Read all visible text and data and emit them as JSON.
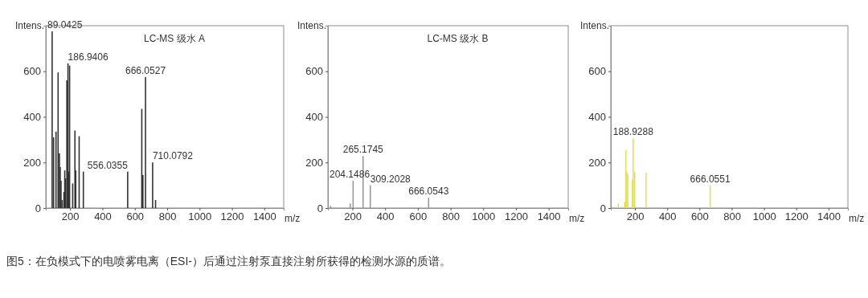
{
  "chart_data": [
    {
      "type": "bar",
      "title": "LC-MS 级水 A",
      "xlabel": "m/z",
      "ylabel": "Intens.",
      "xlim": [
        50,
        1520
      ],
      "ylim": [
        0,
        800
      ],
      "xticks": [
        200,
        400,
        600,
        800,
        1000,
        1200,
        1400
      ],
      "yticks": [
        0,
        200,
        400,
        600
      ],
      "grid": false,
      "series": [
        {
          "color": "#333333",
          "x": [
            89.0425,
            98,
            113,
            126,
            134,
            139,
            144,
            151,
            162,
            167,
            172,
            180,
            186.9406,
            192,
            197,
            216,
            230,
            235,
            256,
            282,
            556.0355,
            643,
            650,
            666.0527,
            710.0792,
            728
          ],
          "values": [
            775,
            310,
            335,
            595,
            240,
            180,
            120,
            35,
            70,
            165,
            130,
            560,
            635,
            160,
            625,
            108,
            340,
            165,
            315,
            160,
            160,
            435,
            145,
            575,
            200,
            35
          ]
        }
      ],
      "annotations": [
        {
          "text": "89.0425",
          "x": 89.0425,
          "y": 775
        },
        {
          "text": "186.9406",
          "x": 186.9406,
          "y": 635
        },
        {
          "text": "666.0527",
          "x": 666.0527,
          "y": 575
        },
        {
          "text": "556.0355",
          "x": 556.0355,
          "y": 160
        },
        {
          "text": "710.0792",
          "x": 710.0792,
          "y": 200
        },
        "图5：在负模式下的电喷雾电离（ESI-）后通过注射泵直接注射所获得的检测水源的质谱。"
      ]
    },
    {
      "type": "bar",
      "title": "LC-MS 级水 B",
      "xlabel": "m/z",
      "ylabel": "Intens.",
      "xlim": [
        50,
        1520
      ],
      "ylim": [
        0,
        800
      ],
      "xticks": [
        200,
        400,
        600,
        800,
        1000,
        1200,
        1400
      ],
      "yticks": [
        0,
        200,
        400,
        600
      ],
      "grid": false,
      "series": [
        {
          "color": "#999999",
          "x": [
            67,
            187,
            204.1486,
            265.1745,
            309.2028,
            666.0543
          ],
          "values": [
            10,
            20,
            120,
            228,
            100,
            45
          ]
        }
      ],
      "annotations": [
        {
          "text": "265.1745",
          "x": 265.1745,
          "y": 228
        },
        {
          "text": "204.1486",
          "x": 204.1486,
          "y": 120
        },
        {
          "text": "309.2028",
          "x": 309.2028,
          "y": 100
        },
        {
          "text": "666.0543",
          "x": 666.0543,
          "y": 45
        }
      ]
    },
    {
      "type": "bar",
      "xlabel": "m/z",
      "ylabel": "Intens.",
      "xlim": [
        50,
        1520
      ],
      "ylim": [
        0,
        800
      ],
      "xticks": [
        200,
        400,
        600,
        800,
        1000,
        1200,
        1400
      ],
      "yticks": [
        0,
        200,
        400,
        600
      ],
      "grid": false,
      "series": [
        {
          "color": "#e3df5c",
          "x": [
            96,
            136,
            143,
            149,
            155,
            183,
            188.9288,
            198,
            268,
            666.0551
          ],
          "values": [
            20,
            27,
            255,
            160,
            150,
            125,
            305,
            160,
            155,
            100
          ]
        }
      ],
      "annotations": [
        {
          "text": "188.9288",
          "x": 188.9288,
          "y": 305
        },
        {
          "text": "666.0551",
          "x": 666.0551,
          "y": 100
        }
      ]
    }
  ]
}
